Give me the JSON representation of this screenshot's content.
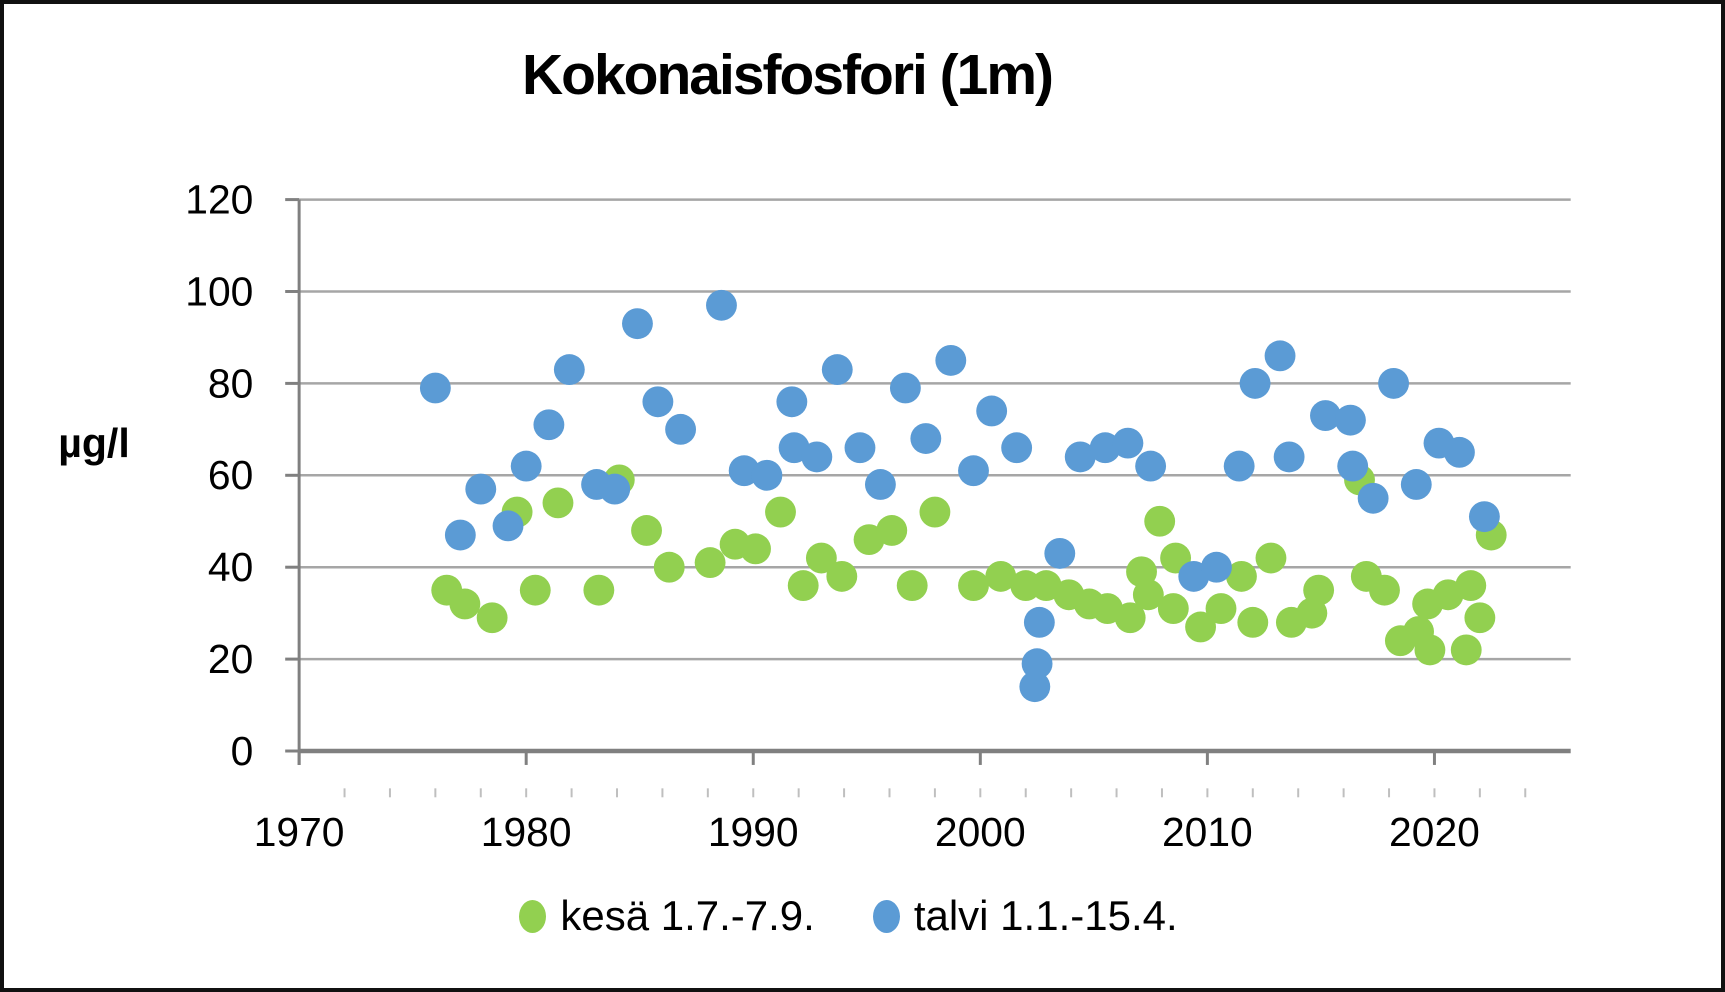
{
  "chart_data": {
    "type": "scatter",
    "title": "Kokonaisfosfori (1m)",
    "ylabel": "µg/l",
    "xlim": [
      1970,
      2026
    ],
    "ylim": [
      0,
      120
    ],
    "x_ticks": [
      1970,
      1980,
      1990,
      2000,
      2010,
      2020
    ],
    "y_ticks": [
      0,
      20,
      40,
      60,
      80,
      100,
      120
    ],
    "grid": true,
    "legend_position": "bottom",
    "grid_color": "#a6a6a6",
    "axis_color": "#808080",
    "minor_tick_color": "#bfbfbf",
    "series": [
      {
        "name": "kesä 1.7.-7.9.",
        "color": "#92d050",
        "points": [
          [
            1976.5,
            35
          ],
          [
            1977.3,
            32
          ],
          [
            1978.5,
            29
          ],
          [
            1979.6,
            52
          ],
          [
            1980.4,
            35
          ],
          [
            1981.4,
            54
          ],
          [
            1983.2,
            35
          ],
          [
            1984.1,
            59
          ],
          [
            1985.3,
            48
          ],
          [
            1986.3,
            40
          ],
          [
            1988.1,
            41
          ],
          [
            1989.2,
            45
          ],
          [
            1990.1,
            44
          ],
          [
            1991.2,
            52
          ],
          [
            1992.2,
            36
          ],
          [
            1993.0,
            42
          ],
          [
            1993.9,
            38
          ],
          [
            1995.1,
            46
          ],
          [
            1996.1,
            48
          ],
          [
            1997.0,
            36
          ],
          [
            1998.0,
            52
          ],
          [
            1999.7,
            36
          ],
          [
            2000.9,
            38
          ],
          [
            2002.0,
            36
          ],
          [
            2002.9,
            36
          ],
          [
            2003.9,
            34
          ],
          [
            2004.8,
            32
          ],
          [
            2005.6,
            31
          ],
          [
            2006.6,
            29
          ],
          [
            2007.1,
            39
          ],
          [
            2007.4,
            34
          ],
          [
            2007.9,
            50
          ],
          [
            2008.5,
            31
          ],
          [
            2008.6,
            42
          ],
          [
            2009.7,
            27
          ],
          [
            2010.6,
            31
          ],
          [
            2011.5,
            38
          ],
          [
            2012.0,
            28
          ],
          [
            2012.8,
            42
          ],
          [
            2013.7,
            28
          ],
          [
            2014.6,
            30
          ],
          [
            2014.9,
            35
          ],
          [
            2016.7,
            59
          ],
          [
            2017.0,
            38
          ],
          [
            2017.8,
            35
          ],
          [
            2018.5,
            24
          ],
          [
            2019.3,
            26
          ],
          [
            2019.7,
            32
          ],
          [
            2019.8,
            22
          ],
          [
            2020.6,
            34
          ],
          [
            2021.4,
            22
          ],
          [
            2021.6,
            36
          ],
          [
            2022.0,
            29
          ],
          [
            2022.5,
            47
          ]
        ]
      },
      {
        "name": "talvi 1.1.-15.4.",
        "color": "#5b9bd5",
        "points": [
          [
            1976.0,
            79
          ],
          [
            1977.1,
            47
          ],
          [
            1978.0,
            57
          ],
          [
            1979.2,
            49
          ],
          [
            1980.0,
            62
          ],
          [
            1981.0,
            71
          ],
          [
            1981.9,
            83
          ],
          [
            1983.1,
            58
          ],
          [
            1983.9,
            57
          ],
          [
            1984.9,
            93
          ],
          [
            1985.8,
            76
          ],
          [
            1986.8,
            70
          ],
          [
            1988.6,
            97
          ],
          [
            1989.6,
            61
          ],
          [
            1990.6,
            60
          ],
          [
            1991.7,
            76
          ],
          [
            1991.8,
            66
          ],
          [
            1992.8,
            64
          ],
          [
            1993.7,
            83
          ],
          [
            1994.7,
            66
          ],
          [
            1995.6,
            58
          ],
          [
            1996.7,
            79
          ],
          [
            1997.6,
            68
          ],
          [
            1998.7,
            85
          ],
          [
            1999.7,
            61
          ],
          [
            2000.5,
            74
          ],
          [
            2001.6,
            66
          ],
          [
            2002.4,
            14
          ],
          [
            2002.5,
            19
          ],
          [
            2002.6,
            28
          ],
          [
            2003.5,
            43
          ],
          [
            2004.4,
            64
          ],
          [
            2005.5,
            66
          ],
          [
            2006.5,
            67
          ],
          [
            2007.5,
            62
          ],
          [
            2009.4,
            38
          ],
          [
            2010.4,
            40
          ],
          [
            2011.4,
            62
          ],
          [
            2012.1,
            80
          ],
          [
            2013.2,
            86
          ],
          [
            2013.6,
            64
          ],
          [
            2015.2,
            73
          ],
          [
            2016.3,
            72
          ],
          [
            2016.4,
            62
          ],
          [
            2017.3,
            55
          ],
          [
            2018.2,
            80
          ],
          [
            2019.2,
            58
          ],
          [
            2020.2,
            67
          ],
          [
            2021.1,
            65
          ],
          [
            2022.2,
            51
          ]
        ]
      }
    ]
  }
}
